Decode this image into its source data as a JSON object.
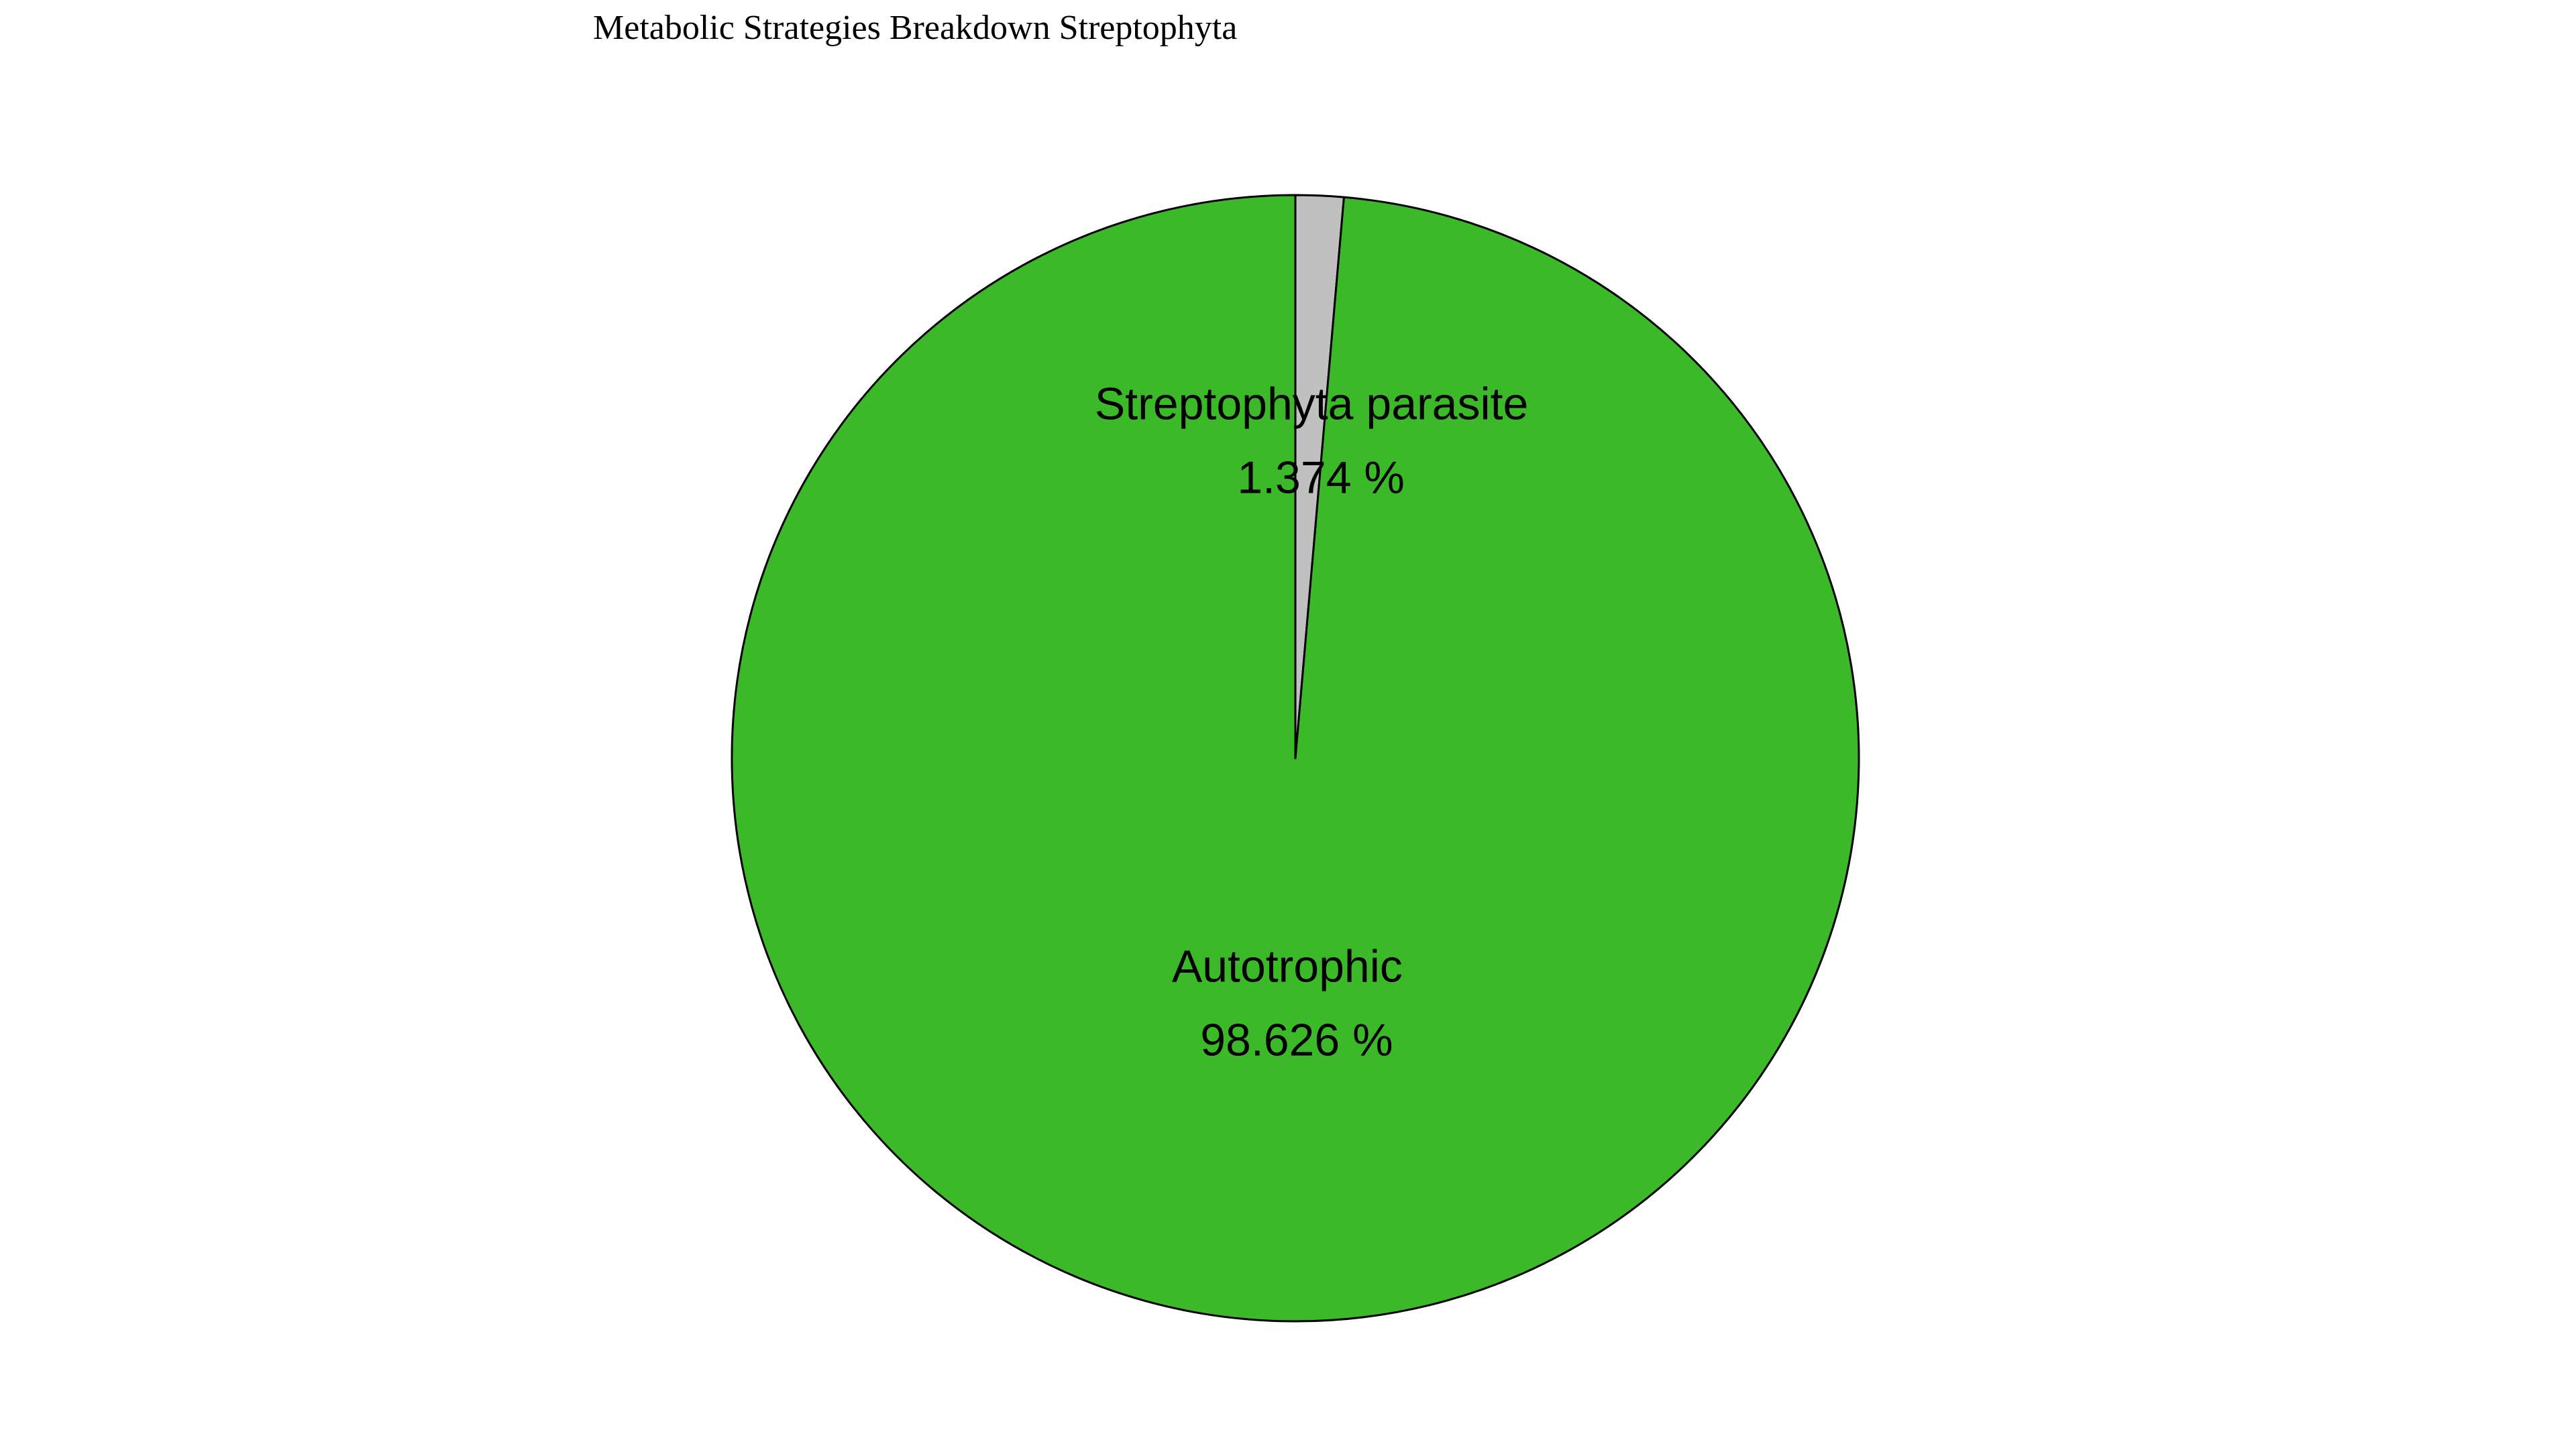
{
  "chart_data": {
    "type": "pie",
    "title": "Metabolic Strategies Breakdown Streptophyta",
    "start_angle_deg": 90,
    "direction": "clockwise",
    "slices": [
      {
        "label": "Streptophyta parasite",
        "value": 1.374,
        "percent_text": "1.374 %",
        "color": "#c0c0c0"
      },
      {
        "label": "Autotrophic",
        "value": 98.626,
        "percent_text": "98.626 %",
        "color": "#3cb928"
      }
    ],
    "edge_color": "#000000"
  }
}
